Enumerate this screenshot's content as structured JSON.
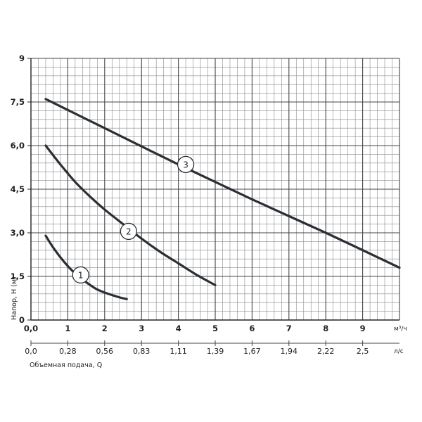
{
  "chart_data": {
    "type": "line",
    "xlabel": "Объемная подача, Q",
    "ylabel": "Напор, H (м)",
    "x_unit": "м³/ч",
    "x2_unit": "л/с",
    "xlim": [
      0,
      10
    ],
    "ylim": [
      0,
      9
    ],
    "x_ticks": [
      "0,0",
      "1",
      "2",
      "3",
      "4",
      "5",
      "6",
      "7",
      "8",
      "9"
    ],
    "x2_ticks": [
      "0,0",
      "0,28",
      "0,56",
      "0,83",
      "1,11",
      "1,39",
      "1,67",
      "1,94",
      "2,22",
      "2,5"
    ],
    "y_ticks": [
      "0",
      "1,5",
      "3,0",
      "4,5",
      "6,0",
      "7,5",
      "9"
    ],
    "grid": true,
    "series": [
      {
        "name": "1",
        "x": [
          0.4,
          0.6,
          0.9,
          1.2,
          1.5,
          1.8,
          2.1,
          2.4,
          2.6
        ],
        "y": [
          2.9,
          2.5,
          2.0,
          1.6,
          1.3,
          1.05,
          0.9,
          0.78,
          0.72
        ]
      },
      {
        "name": "2",
        "x": [
          0.4,
          0.8,
          1.2,
          1.6,
          2.0,
          2.5,
          3.0,
          3.5,
          4.0,
          4.5,
          5.0
        ],
        "y": [
          6.0,
          5.35,
          4.75,
          4.25,
          3.8,
          3.3,
          2.8,
          2.35,
          1.95,
          1.55,
          1.2
        ]
      },
      {
        "name": "3",
        "x": [
          0.4,
          2.0,
          4.0,
          6.0,
          8.0,
          10.0
        ],
        "y": [
          7.6,
          6.6,
          5.35,
          4.15,
          3.0,
          1.8
        ]
      }
    ],
    "markers": [
      {
        "label": "1",
        "x": 1.35,
        "y": 1.55
      },
      {
        "label": "2",
        "x": 2.65,
        "y": 3.05
      },
      {
        "label": "3",
        "x": 4.2,
        "y": 5.35
      }
    ]
  }
}
